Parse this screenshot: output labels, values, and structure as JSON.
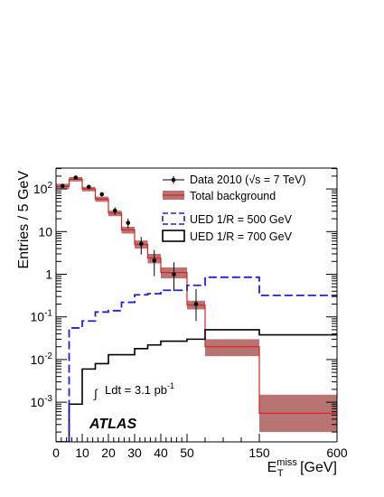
{
  "chart_data": {
    "type": "step-histogram",
    "ylabel": "Entries / 5 GeV",
    "xlabel": {
      "main": "E",
      "sup": "miss",
      "sub": "T",
      "unit": " [GeV]"
    },
    "yscale": "log",
    "ylim": [
      0.00012,
      400
    ],
    "x_ticks": [
      0,
      10,
      20,
      30,
      40,
      50,
      150,
      600
    ],
    "y_ticks": [
      {
        "value": 0.001,
        "base": "10",
        "exp": "-3"
      },
      {
        "value": 0.01,
        "base": "10",
        "exp": "-2"
      },
      {
        "value": 0.1,
        "base": "10",
        "exp": "-1"
      },
      {
        "value": 1,
        "base": "1",
        "exp": ""
      },
      {
        "value": 10,
        "base": "10",
        "exp": ""
      },
      {
        "value": 100,
        "base": "10",
        "exp": "2"
      }
    ],
    "bin_edges": [
      0,
      5,
      10,
      15,
      20,
      25,
      30,
      35,
      40,
      50,
      75,
      150,
      600
    ],
    "total_background": {
      "name": "Total background",
      "values": [
        115,
        170,
        100,
        58,
        27,
        11,
        5,
        2.4,
        1.1,
        0.19,
        0.02,
        0.00055
      ],
      "band_low": [
        98,
        150,
        88,
        50,
        23,
        9,
        4,
        1.8,
        0.8,
        0.15,
        0.012,
        0.0002
      ],
      "band_high": [
        132,
        190,
        112,
        66,
        31,
        13,
        6.2,
        3.0,
        1.45,
        0.24,
        0.03,
        0.0015
      ]
    },
    "data": {
      "name": "Data 2010 (√s = 7 TeV)",
      "points": [
        {
          "x": 2.5,
          "y": 118,
          "err": [
            10,
            10
          ]
        },
        {
          "x": 7.5,
          "y": 185,
          "err": [
            14,
            14
          ]
        },
        {
          "x": 12.5,
          "y": 112,
          "err": [
            11,
            11
          ]
        },
        {
          "x": 17.5,
          "y": 75,
          "err": [
            9,
            9
          ]
        },
        {
          "x": 22.5,
          "y": 31,
          "err": [
            6,
            6
          ]
        },
        {
          "x": 27.5,
          "y": 16,
          "err": [
            4,
            4
          ]
        },
        {
          "x": 32.5,
          "y": 5.2,
          "err": [
            2.3,
            2.3
          ]
        },
        {
          "x": 37.5,
          "y": 2.1,
          "err": [
            1.2,
            1.6
          ]
        },
        {
          "x": 45,
          "y": 1.0,
          "err": [
            0.6,
            0.9
          ]
        },
        {
          "x": 62.5,
          "y": 0.2,
          "err": [
            0.12,
            0.25
          ]
        }
      ]
    },
    "ued500": {
      "name": "UED 1/R = 500 GeV",
      "edges": [
        0,
        5,
        10,
        15,
        20,
        25,
        30,
        35,
        40,
        50,
        75,
        150,
        600
      ],
      "values": [
        0.0001,
        0.055,
        0.08,
        0.13,
        0.14,
        0.22,
        0.33,
        0.35,
        0.42,
        0.55,
        0.85,
        0.32
      ]
    },
    "ued700": {
      "name": "UED 1/R = 700 GeV",
      "edges": [
        0,
        5,
        10,
        15,
        20,
        25,
        30,
        35,
        40,
        50,
        75,
        150,
        600
      ],
      "values": [
        0.0001,
        0.0009,
        0.006,
        0.008,
        0.013,
        0.013,
        0.018,
        0.022,
        0.027,
        0.03,
        0.05,
        0.038
      ]
    },
    "colors": {
      "background_line": "#e0201b",
      "background_band": "#b87373",
      "ued500": "#2020d8",
      "ued700": "#000000",
      "data": "#000000"
    },
    "annotation": {
      "base": "Ldt = 3.1 pb",
      "sup": "-1",
      "symbol": "∫"
    },
    "atlas_label": "ATLAS",
    "legend": [
      "Data 2010 (√s = 7 TeV)",
      "Total background",
      "UED 1/R = 500 GeV",
      "UED 1/R = 700 GeV"
    ]
  }
}
